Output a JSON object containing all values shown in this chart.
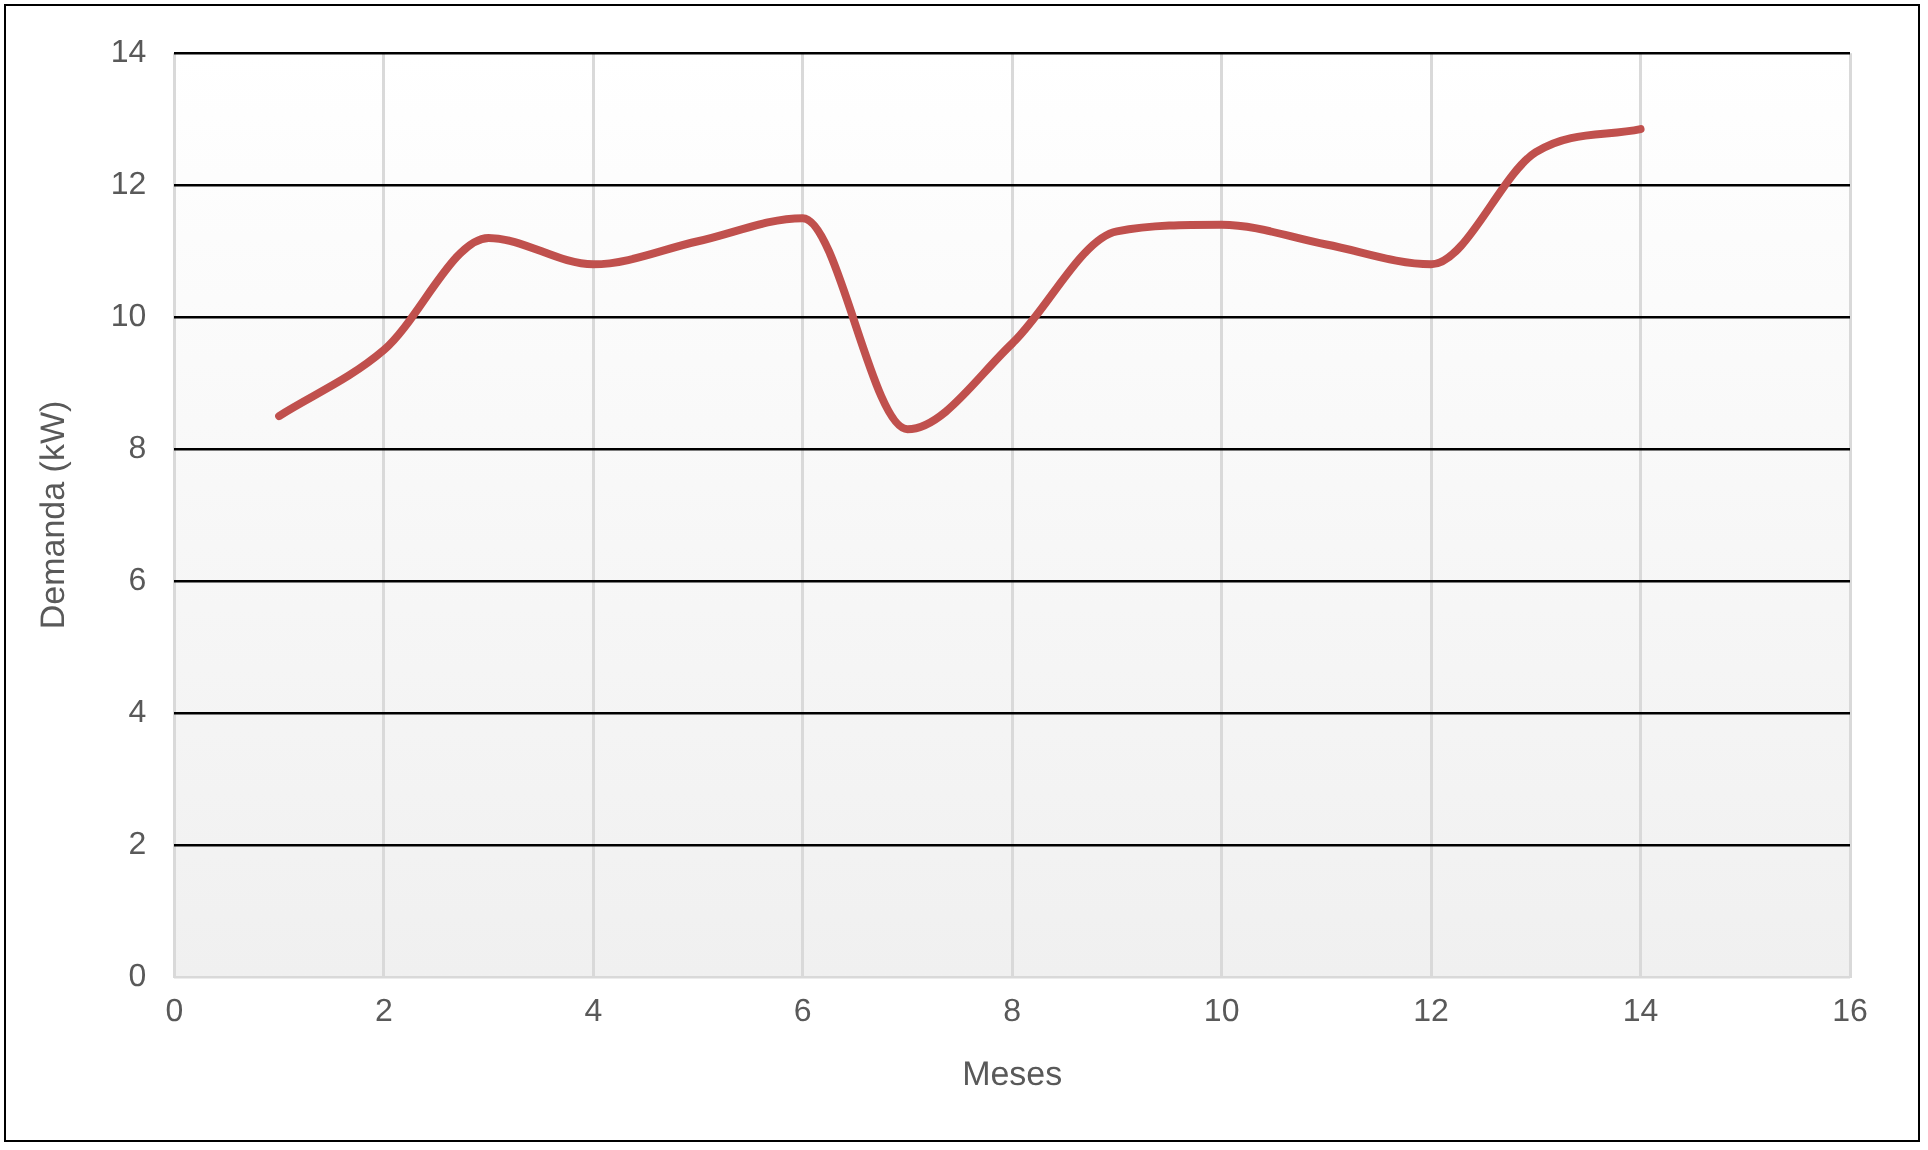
{
  "chart_data": {
    "type": "line",
    "xlabel": "Meses",
    "ylabel": "Demanda (kW)",
    "x": [
      1,
      2,
      3,
      4,
      5,
      6,
      7,
      8,
      9,
      10,
      11,
      12,
      13,
      14
    ],
    "series": [
      {
        "color": "#c0504d",
        "values": [
          8.5,
          9.5,
          11.2,
          10.8,
          11.15,
          11.5,
          8.3,
          9.6,
          11.3,
          11.4,
          11.1,
          10.8,
          12.5,
          12.85
        ]
      }
    ],
    "xlim": [
      0,
      16
    ],
    "xticks": [
      0,
      2,
      4,
      6,
      8,
      10,
      12,
      14,
      16
    ],
    "ylim": [
      0,
      14
    ],
    "yticks": [
      0,
      2,
      4,
      6,
      8,
      10,
      12,
      14
    ],
    "grid": true,
    "legend": false,
    "marker": "none",
    "line_style": "solid"
  }
}
